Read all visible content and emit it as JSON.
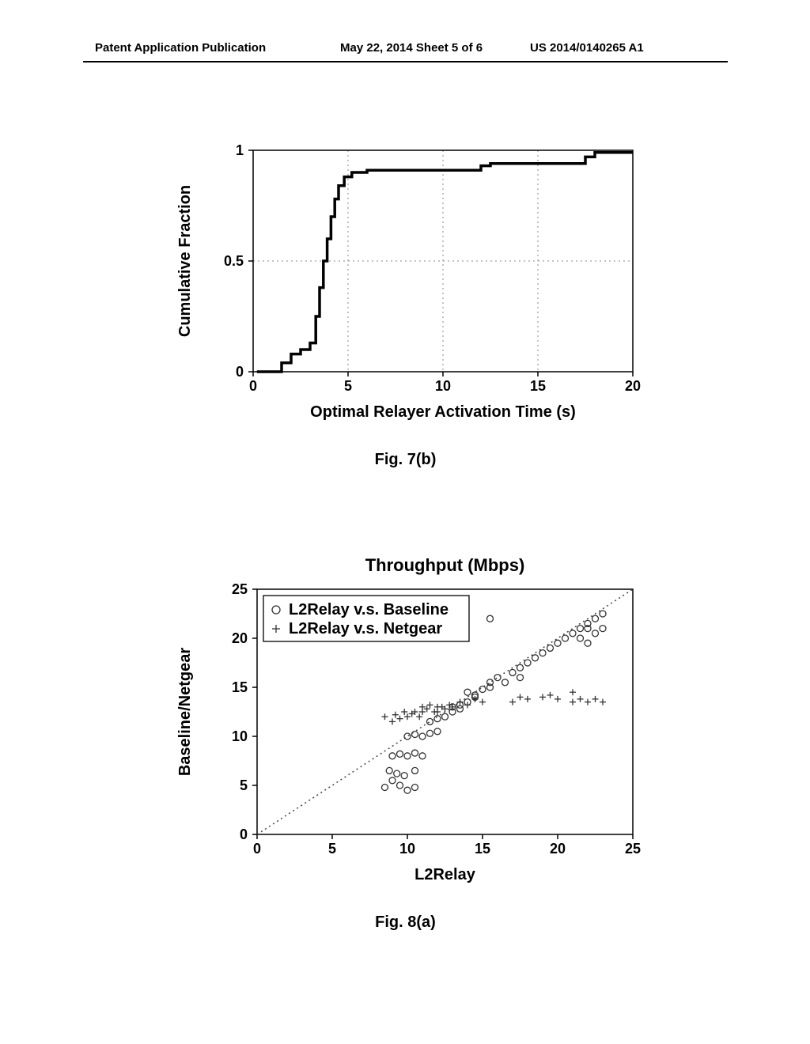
{
  "header": {
    "left": "Patent Application Publication",
    "center": "May 22, 2014  Sheet 5 of 6",
    "right": "US 2014/0140265 A1"
  },
  "fig7b": {
    "type": "cdf",
    "caption": "Fig. 7(b)",
    "xlabel": "Optimal Relayer Activation Time (s)",
    "ylabel": "Cumulative Fraction",
    "xlim": [
      0,
      20
    ],
    "ylim": [
      0,
      1
    ],
    "xticks": [
      0,
      5,
      10,
      15,
      20
    ],
    "yticks": [
      0,
      0.5,
      1
    ],
    "xticklabels": [
      "0",
      "5",
      "10",
      "15",
      "20"
    ],
    "yticklabels": [
      "0",
      "0.5",
      "1"
    ],
    "line_color": "#000000",
    "line_width": 3.5,
    "grid_color": "#888888",
    "background_color": "#ffffff",
    "label_fontsize": 20,
    "tick_fontsize": 18,
    "data": [
      [
        0.2,
        0.0
      ],
      [
        1.5,
        0.0
      ],
      [
        1.5,
        0.04
      ],
      [
        2.0,
        0.04
      ],
      [
        2.0,
        0.08
      ],
      [
        2.5,
        0.08
      ],
      [
        2.5,
        0.1
      ],
      [
        2.8,
        0.1
      ],
      [
        2.8,
        0.1
      ],
      [
        3.0,
        0.1
      ],
      [
        3.0,
        0.13
      ],
      [
        3.3,
        0.13
      ],
      [
        3.3,
        0.25
      ],
      [
        3.5,
        0.25
      ],
      [
        3.5,
        0.38
      ],
      [
        3.7,
        0.38
      ],
      [
        3.7,
        0.5
      ],
      [
        3.9,
        0.5
      ],
      [
        3.9,
        0.6
      ],
      [
        4.1,
        0.6
      ],
      [
        4.1,
        0.7
      ],
      [
        4.3,
        0.7
      ],
      [
        4.3,
        0.78
      ],
      [
        4.5,
        0.78
      ],
      [
        4.5,
        0.84
      ],
      [
        4.8,
        0.84
      ],
      [
        4.8,
        0.88
      ],
      [
        5.2,
        0.88
      ],
      [
        5.2,
        0.9
      ],
      [
        6.0,
        0.9
      ],
      [
        6.0,
        0.91
      ],
      [
        12.0,
        0.91
      ],
      [
        12.0,
        0.93
      ],
      [
        12.5,
        0.93
      ],
      [
        12.5,
        0.94
      ],
      [
        17.5,
        0.94
      ],
      [
        17.5,
        0.97
      ],
      [
        18.0,
        0.97
      ],
      [
        18.0,
        0.99
      ],
      [
        20.0,
        0.99
      ]
    ]
  },
  "fig8a": {
    "type": "scatter",
    "caption": "Fig. 8(a)",
    "title": "Throughput (Mbps)",
    "xlabel": "L2Relay",
    "ylabel": "Baseline/Netgear",
    "xlim": [
      0,
      25
    ],
    "ylim": [
      0,
      25
    ],
    "xticks": [
      0,
      5,
      10,
      15,
      20,
      25
    ],
    "yticks": [
      0,
      5,
      10,
      15,
      20,
      25
    ],
    "xticklabels": [
      "0",
      "5",
      "10",
      "15",
      "20",
      "25"
    ],
    "yticklabels": [
      "0",
      "5",
      "10",
      "15",
      "20",
      "25"
    ],
    "diagonal_color": "#444444",
    "marker_color": "#333333",
    "background_color": "#ffffff",
    "title_fontsize": 22,
    "label_fontsize": 20,
    "tick_fontsize": 18,
    "legend": {
      "items": [
        {
          "marker": "circle",
          "label": "L2Relay v.s. Baseline"
        },
        {
          "marker": "plus",
          "label": "L2Relay v.s. Netgear"
        }
      ],
      "fontsize": 20,
      "border_color": "#000000"
    },
    "baseline_points": [
      [
        8.5,
        4.8
      ],
      [
        9.0,
        5.5
      ],
      [
        9.5,
        5.0
      ],
      [
        10.0,
        4.5
      ],
      [
        10.5,
        4.8
      ],
      [
        8.8,
        6.5
      ],
      [
        9.3,
        6.2
      ],
      [
        9.8,
        6.0
      ],
      [
        10.5,
        6.5
      ],
      [
        9.0,
        8.0
      ],
      [
        9.5,
        8.2
      ],
      [
        10.0,
        8.0
      ],
      [
        10.5,
        8.3
      ],
      [
        11.0,
        8.0
      ],
      [
        10.0,
        10.0
      ],
      [
        10.5,
        10.2
      ],
      [
        11.0,
        10.0
      ],
      [
        11.5,
        10.3
      ],
      [
        12.0,
        10.5
      ],
      [
        11.5,
        11.5
      ],
      [
        12.0,
        11.8
      ],
      [
        12.5,
        12.0
      ],
      [
        13.0,
        12.5
      ],
      [
        13.5,
        12.8
      ],
      [
        13.0,
        13.0
      ],
      [
        13.5,
        13.2
      ],
      [
        14.0,
        13.5
      ],
      [
        14.5,
        14.0
      ],
      [
        14.0,
        14.5
      ],
      [
        14.5,
        14.2
      ],
      [
        15.0,
        14.8
      ],
      [
        15.5,
        15.0
      ],
      [
        15.5,
        15.5
      ],
      [
        16.0,
        16.0
      ],
      [
        16.5,
        15.5
      ],
      [
        17.0,
        16.5
      ],
      [
        17.5,
        17.0
      ],
      [
        18.0,
        17.5
      ],
      [
        18.5,
        18.0
      ],
      [
        17.5,
        16.0
      ],
      [
        19.0,
        18.5
      ],
      [
        19.5,
        19.0
      ],
      [
        20.0,
        19.5
      ],
      [
        20.5,
        20.0
      ],
      [
        21.0,
        20.5
      ],
      [
        21.5,
        21.0
      ],
      [
        22.0,
        21.5
      ],
      [
        22.5,
        22.0
      ],
      [
        23.0,
        22.5
      ],
      [
        22.0,
        21.0
      ],
      [
        21.5,
        20.0
      ],
      [
        22.5,
        20.5
      ],
      [
        23.0,
        21.0
      ],
      [
        22.0,
        19.5
      ],
      [
        15.5,
        22.0
      ]
    ],
    "netgear_points": [
      [
        8.5,
        12.0
      ],
      [
        9.0,
        11.5
      ],
      [
        9.2,
        12.2
      ],
      [
        9.5,
        11.8
      ],
      [
        9.8,
        12.5
      ],
      [
        10.0,
        12.0
      ],
      [
        10.3,
        12.3
      ],
      [
        10.5,
        12.5
      ],
      [
        10.8,
        12.0
      ],
      [
        11.0,
        12.5
      ],
      [
        11.0,
        13.0
      ],
      [
        11.3,
        12.8
      ],
      [
        11.5,
        13.2
      ],
      [
        11.8,
        12.5
      ],
      [
        12.0,
        13.0
      ],
      [
        12.0,
        12.5
      ],
      [
        12.3,
        13.0
      ],
      [
        12.5,
        12.8
      ],
      [
        12.8,
        13.2
      ],
      [
        13.0,
        13.0
      ],
      [
        13.5,
        13.5
      ],
      [
        14.0,
        13.2
      ],
      [
        14.5,
        13.8
      ],
      [
        15.0,
        13.5
      ],
      [
        17.0,
        13.5
      ],
      [
        17.5,
        14.0
      ],
      [
        18.0,
        13.8
      ],
      [
        19.0,
        14.0
      ],
      [
        19.5,
        14.2
      ],
      [
        20.0,
        13.8
      ],
      [
        21.0,
        13.5
      ],
      [
        21.5,
        13.8
      ],
      [
        22.0,
        13.5
      ],
      [
        22.5,
        13.8
      ],
      [
        23.0,
        13.5
      ],
      [
        21.0,
        14.5
      ]
    ]
  }
}
